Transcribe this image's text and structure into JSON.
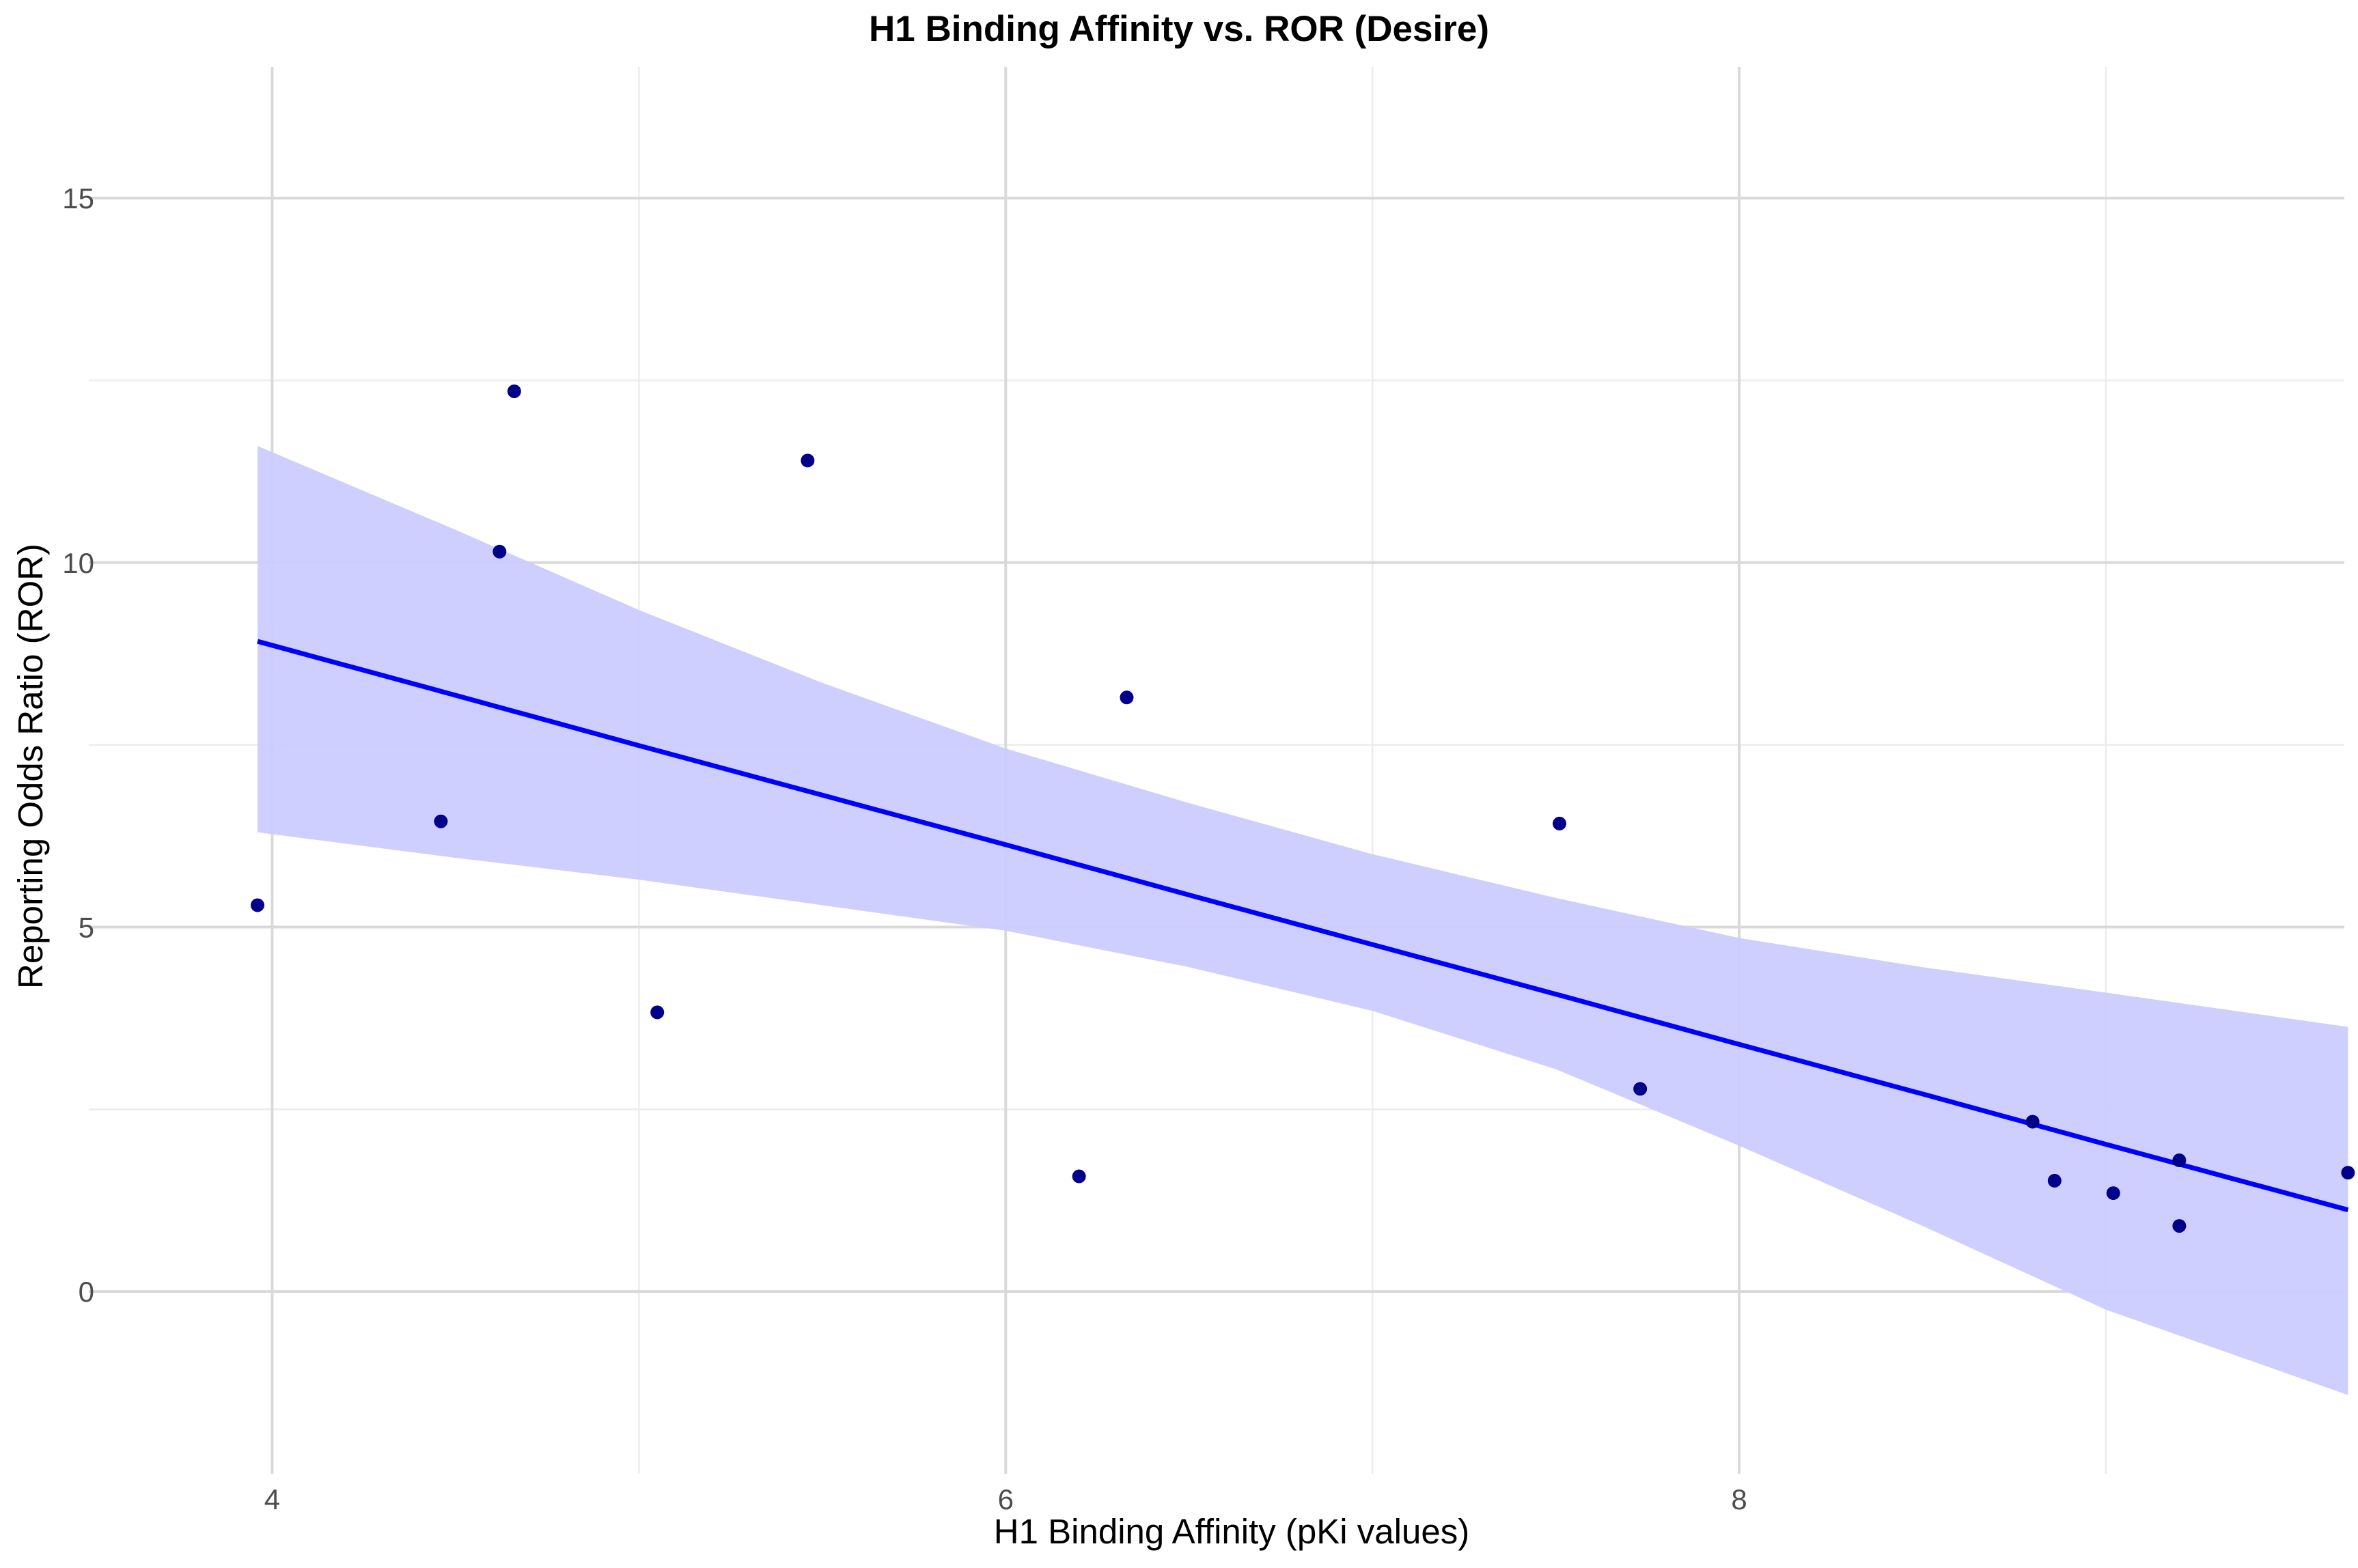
{
  "chart_data": {
    "type": "scatter",
    "title": "H1 Binding Affinity vs. ROR (Desire)",
    "xlabel": "H1 Binding Affinity (pKi values)",
    "ylabel": "Reporting Odds Ratio (ROR)",
    "xlim": [
      3.5,
      9.65
    ],
    "ylim": [
      -2.5,
      16.8
    ],
    "x_ticks": [
      4,
      6,
      8
    ],
    "x_tick_labels": [
      "4",
      "6",
      "8"
    ],
    "x_minor_ticks": [
      5,
      7,
      9
    ],
    "y_ticks": [
      0,
      5,
      10,
      15
    ],
    "y_tick_labels": [
      "0",
      "5",
      "10",
      "15"
    ],
    "y_minor_ticks": [
      2.5,
      7.5,
      12.5
    ],
    "grid": true,
    "series": [
      {
        "name": "points",
        "color": "#00008b",
        "x": [
          3.96,
          4.46,
          4.62,
          4.66,
          5.05,
          5.46,
          6.2,
          6.33,
          7.51,
          7.73,
          8.8,
          8.86,
          9.02,
          9.2,
          9.2,
          9.66
        ],
        "y": [
          5.3,
          6.45,
          10.15,
          12.35,
          3.83,
          11.4,
          1.58,
          8.15,
          6.42,
          2.78,
          2.33,
          1.52,
          1.35,
          1.8,
          0.9,
          1.63
        ]
      }
    ],
    "fit": {
      "type": "linear",
      "color": "#0000ff",
      "band_color": "#ccccff",
      "x": [
        3.96,
        4.5,
        5.0,
        5.5,
        6.0,
        6.5,
        7.0,
        7.5,
        8.0,
        8.5,
        9.0,
        9.66
      ],
      "y": [
        8.92,
        8.18,
        7.49,
        6.81,
        6.13,
        5.44,
        4.76,
        4.08,
        3.39,
        2.71,
        2.02,
        1.12
      ],
      "lower": [
        6.3,
        5.95,
        5.65,
        5.3,
        4.95,
        4.45,
        3.85,
        3.05,
        2.0,
        0.9,
        -0.25,
        -1.42
      ],
      "upper": [
        11.6,
        10.45,
        9.35,
        8.35,
        7.45,
        6.7,
        6.0,
        5.4,
        4.85,
        4.45,
        4.1,
        3.63
      ]
    }
  }
}
